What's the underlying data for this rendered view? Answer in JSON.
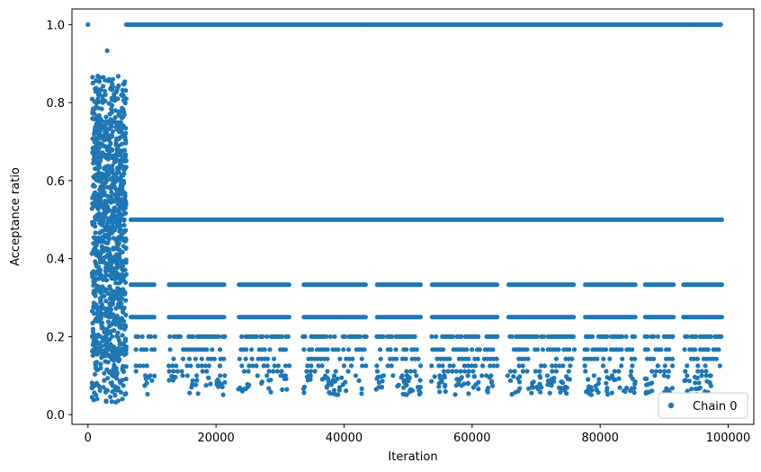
{
  "chart_data": {
    "type": "scatter",
    "title": "",
    "xlabel": "Iteration",
    "ylabel": "Acceptance ratio",
    "xlim": [
      -2500,
      104000
    ],
    "ylim": [
      -0.025,
      1.04
    ],
    "xticks": [
      0,
      20000,
      40000,
      60000,
      80000,
      100000
    ],
    "xtick_labels": [
      "0",
      "20000",
      "40000",
      "60000",
      "80000",
      "100000"
    ],
    "yticks": [
      0.0,
      0.2,
      0.4,
      0.6,
      0.8,
      1.0
    ],
    "ytick_labels": [
      "0.0",
      "0.2",
      "0.4",
      "0.6",
      "0.8",
      "1.0"
    ],
    "grid": false,
    "legend_position": "bottom-right",
    "series": [
      {
        "name": "Chain 0",
        "color": "#1f77b4",
        "marker": "circle",
        "burn_in_end": 6000,
        "iteration_end": 99000,
        "constant_levels": [
          1.0,
          0.5,
          0.3333,
          0.25
        ],
        "sparse_levels": [
          0.2,
          0.1667,
          0.1429,
          0.125,
          0.1111,
          0.1
        ],
        "gap_intervals": [
          [
            10500,
            12500
          ],
          [
            21500,
            23500
          ],
          [
            31500,
            33500
          ],
          [
            43500,
            45000
          ],
          [
            52000,
            53500
          ],
          [
            64000,
            65500
          ],
          [
            76000,
            77500
          ],
          [
            85500,
            87000
          ],
          [
            91500,
            93000
          ]
        ],
        "isolated_points": [
          [
            0,
            1.0
          ],
          [
            3000,
            0.933
          ]
        ],
        "min_value": 0.03
      }
    ]
  }
}
